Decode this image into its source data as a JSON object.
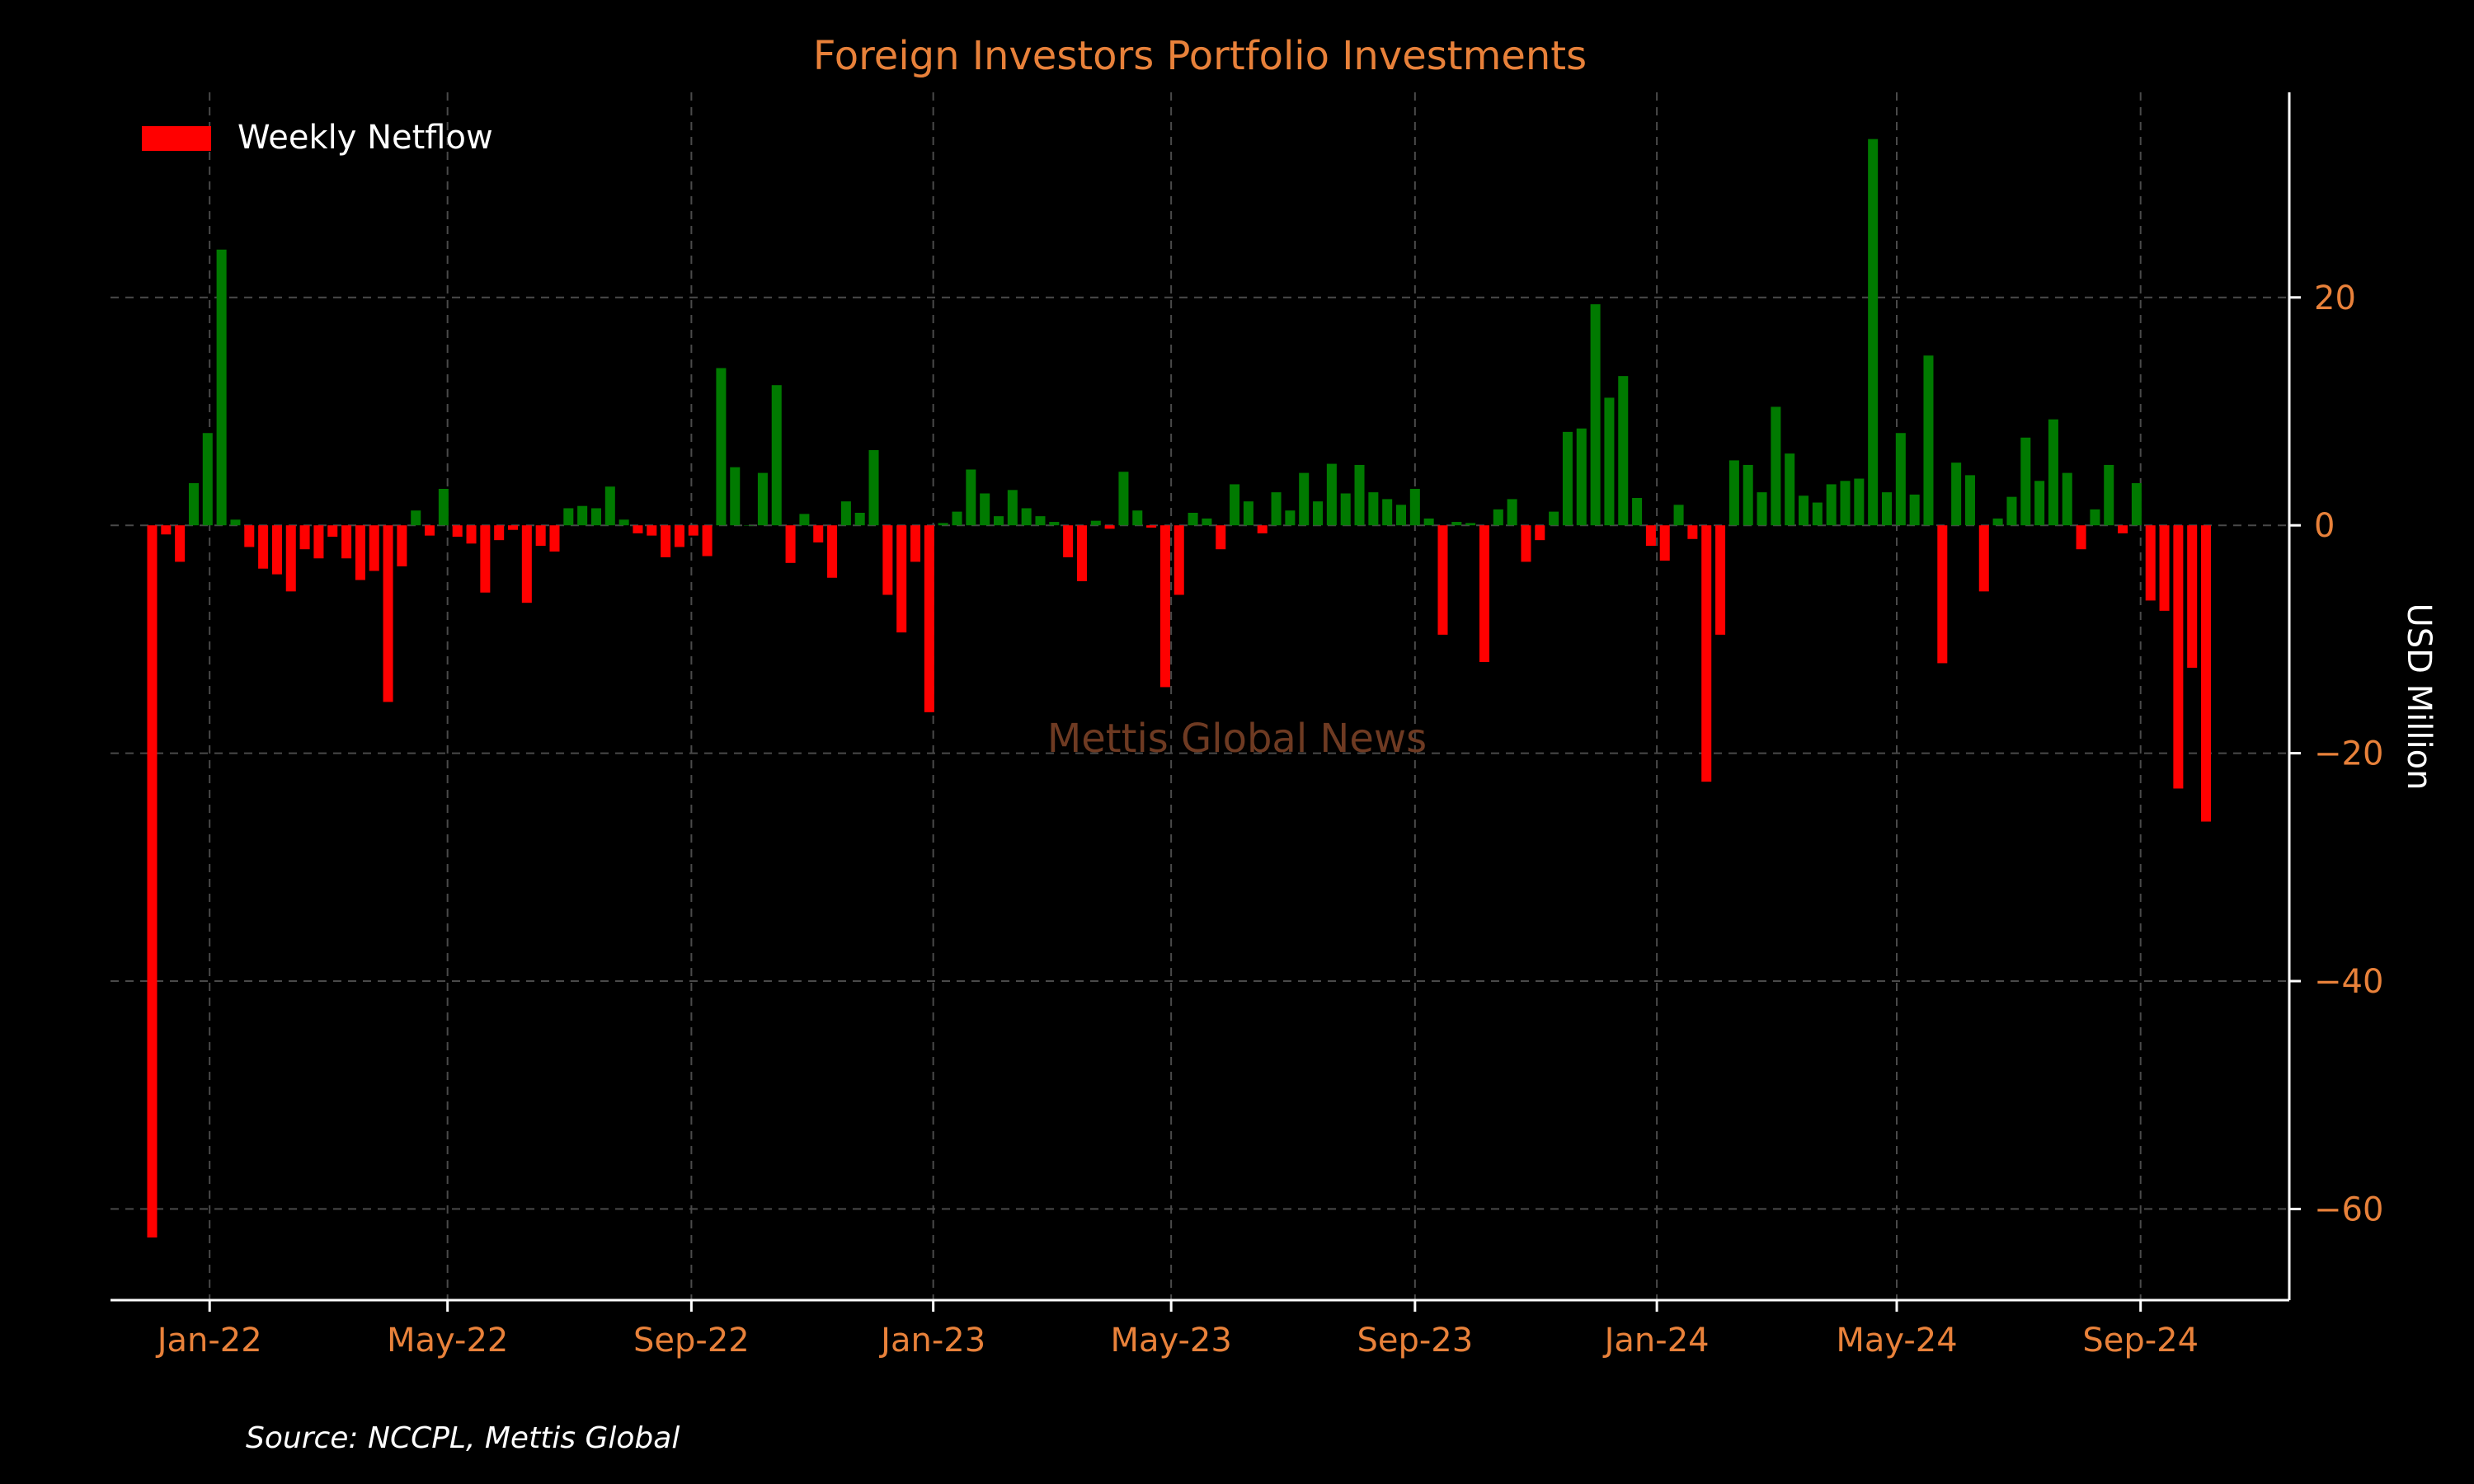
{
  "chart_data": {
    "type": "bar",
    "title": "Foreign Investors Portfolio Investments",
    "ylabel": "USD Million",
    "xlabel": "",
    "ylim": [
      -68,
      38
    ],
    "y_ticks": [
      20,
      0,
      -20,
      -40,
      -60
    ],
    "y_tick_labels": [
      "20",
      "0",
      "−20",
      "−40",
      "−60"
    ],
    "x_start": "2021-11-12",
    "x_end": "2024-11-15",
    "x_ticks": [
      {
        "date": "2022-01-01",
        "label": "Jan-22"
      },
      {
        "date": "2022-05-01",
        "label": "May-22"
      },
      {
        "date": "2022-09-01",
        "label": "Sep-22"
      },
      {
        "date": "2023-01-01",
        "label": "Jan-23"
      },
      {
        "date": "2023-05-01",
        "label": "May-23"
      },
      {
        "date": "2023-09-01",
        "label": "Sep-23"
      },
      {
        "date": "2024-01-01",
        "label": "Jan-24"
      },
      {
        "date": "2024-05-01",
        "label": "May-24"
      },
      {
        "date": "2024-09-01",
        "label": "Sep-24"
      }
    ],
    "grid": true,
    "legend_position": "top-left",
    "positive_color": "#007a00",
    "negative_color": "#ff0000",
    "series": [
      {
        "name": "Weekly Netflow",
        "first_week": "2021-12-03",
        "values": [
          -62.5,
          -0.8,
          -3.2,
          3.7,
          8.1,
          24.2,
          0.5,
          -1.9,
          -3.8,
          -4.3,
          -5.8,
          -2.1,
          -2.9,
          -1,
          -2.9,
          -4.8,
          -4,
          -15.5,
          -3.6,
          1.3,
          -0.9,
          3.2,
          -1,
          -1.6,
          -5.9,
          -1.3,
          -0.4,
          -6.8,
          -1.8,
          -2.3,
          1.5,
          1.7,
          1.5,
          3.4,
          0.5,
          -0.7,
          -0.9,
          -2.8,
          -1.9,
          -0.9,
          -2.7,
          13.8,
          5.1,
          0,
          4.6,
          12.3,
          -3.3,
          1,
          -1.5,
          -4.6,
          2.1,
          1.1,
          6.6,
          -6.1,
          -9.4,
          -3.2,
          -16.4,
          0.2,
          1.2,
          4.9,
          2.8,
          0.8,
          3.1,
          1.5,
          0.8,
          0.3,
          -2.8,
          -4.9,
          0.4,
          -0.3,
          4.7,
          1.3,
          -0.2,
          -14.2,
          -6.1,
          1.1,
          0.6,
          -2.1,
          3.6,
          2.1,
          -0.7,
          2.9,
          1.3,
          4.6,
          2.1,
          5.4,
          2.8,
          5.3,
          2.9,
          2.3,
          1.8,
          3.2,
          0.6,
          -9.6,
          0.3,
          0.2,
          -12,
          1.4,
          2.3,
          -3.2,
          -1.3,
          1.2,
          8.2,
          8.5,
          19.4,
          11.2,
          13.1,
          2.4,
          -1.8,
          -3.1,
          1.8,
          -1.2,
          -22.5,
          -9.6,
          5.7,
          5.3,
          2.9,
          10.4,
          6.3,
          2.6,
          2,
          3.6,
          3.9,
          4.1,
          33.9,
          2.9,
          8.1,
          2.7,
          14.9,
          -12.1,
          5.5,
          4.4,
          -5.8,
          0.6,
          2.5,
          7.7,
          3.9,
          9.3,
          4.6,
          -2.1,
          1.4,
          5.3,
          -0.7,
          3.7,
          -6.6,
          -7.5,
          -23.1,
          -12.5,
          -26
        ]
      }
    ],
    "watermark": "Mettis Global News",
    "source": "Source: NCCPL, Mettis Global"
  }
}
